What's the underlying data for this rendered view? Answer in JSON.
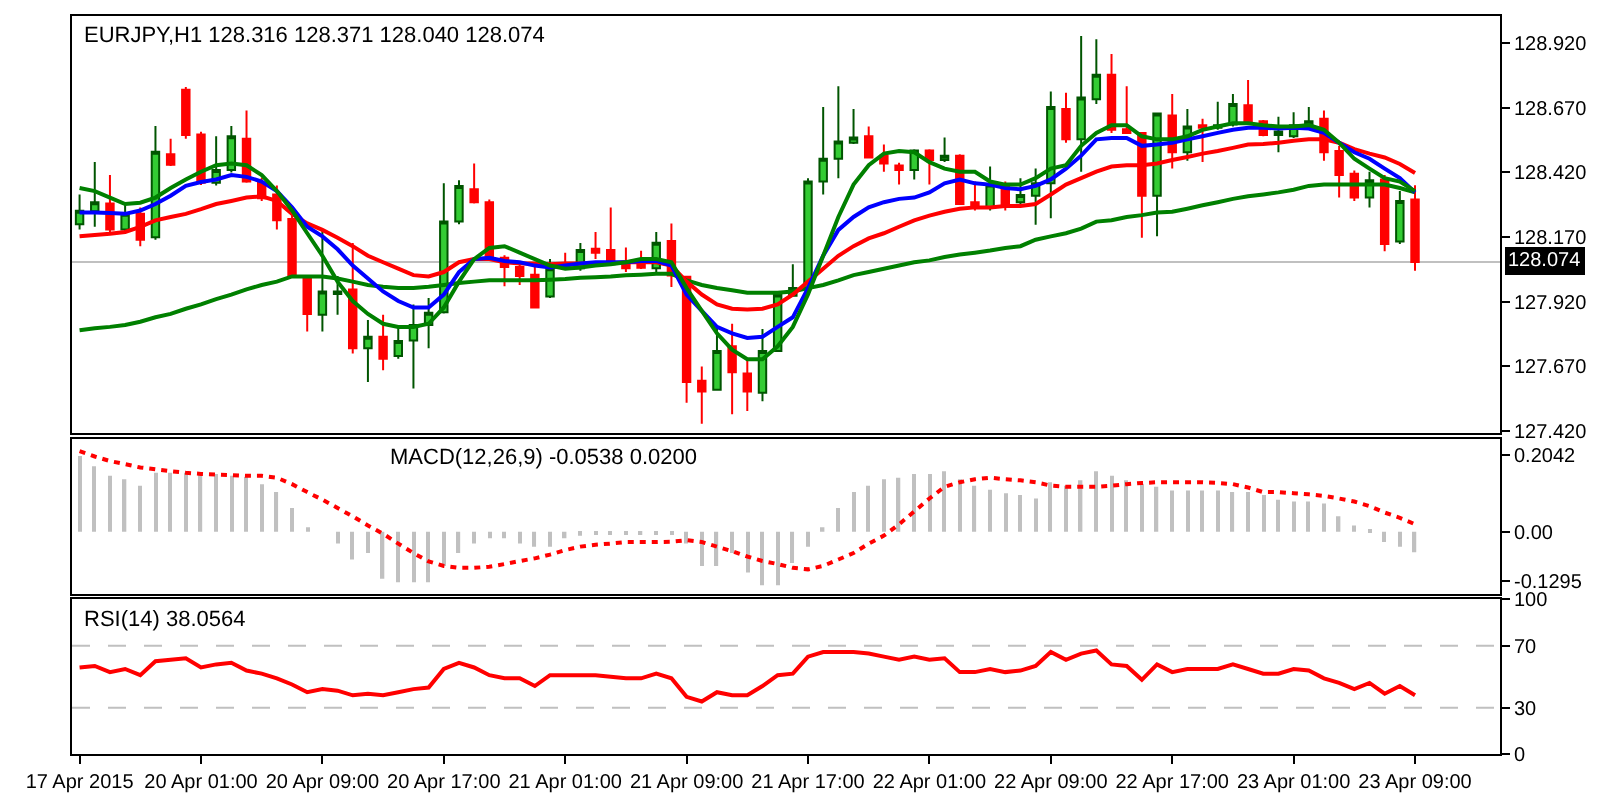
{
  "chart_data": [
    {
      "type": "candlestick",
      "title": "EURJPY,H1 128.316 128.371 128.040 128.074",
      "categories": [
        null,
        null,
        null,
        null,
        null,
        null,
        null,
        null,
        null,
        null,
        null,
        null,
        null,
        null,
        null,
        null,
        null,
        null,
        null,
        null,
        null,
        null,
        null,
        null,
        null,
        null,
        null,
        null,
        null,
        null,
        null,
        null,
        null,
        null,
        null,
        null,
        null,
        null,
        null,
        null,
        null,
        null,
        null,
        null,
        null,
        null,
        null,
        null,
        null,
        null,
        null,
        null,
        null,
        null,
        null,
        null,
        null,
        null,
        null,
        null,
        null,
        null,
        null,
        null,
        null,
        null,
        null,
        null,
        null,
        null,
        null,
        null,
        null,
        null,
        null,
        null,
        null,
        null,
        null,
        null,
        null,
        null,
        null,
        null,
        null,
        null,
        null,
        null,
        null
      ],
      "ohlc": [
        [
          128.22,
          128.335,
          128.2,
          128.272
        ],
        [
          128.27,
          128.46,
          128.21,
          128.305
        ],
        [
          128.3,
          128.41,
          128.185,
          128.2
        ],
        [
          128.2,
          128.3,
          128.19,
          128.26
        ],
        [
          128.26,
          128.285,
          128.135,
          128.16
        ],
        [
          128.17,
          128.6,
          128.16,
          128.5
        ],
        [
          128.49,
          128.55,
          128.445,
          128.45
        ],
        [
          128.74,
          128.75,
          128.55,
          128.565
        ],
        [
          128.567,
          128.577,
          128.372,
          128.38
        ],
        [
          128.38,
          128.56,
          128.37,
          128.43
        ],
        [
          128.43,
          128.6,
          128.42,
          128.56
        ],
        [
          128.55,
          128.66,
          128.38,
          128.385
        ],
        [
          128.38,
          128.4,
          128.31,
          128.32
        ],
        [
          128.335,
          128.37,
          128.2,
          128.235
        ],
        [
          128.24,
          128.285,
          128.015,
          128.017
        ],
        [
          128.01,
          128.012,
          127.805,
          127.873
        ],
        [
          127.87,
          128.2,
          127.805,
          127.96
        ],
        [
          127.95,
          128.02,
          127.87,
          127.96
        ],
        [
          127.968,
          128.147,
          127.72,
          127.74
        ],
        [
          127.74,
          127.85,
          127.61,
          127.785
        ],
        [
          127.785,
          127.87,
          127.655,
          127.7
        ],
        [
          127.71,
          127.82,
          127.7,
          127.768
        ],
        [
          127.77,
          127.91,
          127.585,
          127.83
        ],
        [
          127.83,
          127.935,
          127.74,
          127.878
        ],
        [
          127.88,
          128.378,
          127.875,
          128.23
        ],
        [
          128.23,
          128.39,
          128.22,
          128.368
        ],
        [
          128.355,
          128.455,
          128.3,
          128.305
        ],
        [
          128.305,
          128.315,
          128.085,
          128.087
        ],
        [
          128.09,
          128.1,
          127.98,
          128.055
        ],
        [
          128.055,
          128.07,
          127.985,
          128.02
        ],
        [
          128.025,
          128.06,
          127.895,
          127.898
        ],
        [
          127.94,
          128.085,
          127.935,
          128.05
        ],
        [
          128.07,
          128.11,
          128.05,
          128.06
        ],
        [
          128.05,
          128.147,
          128.04,
          128.12
        ],
        [
          128.125,
          128.19,
          128.085,
          128.11
        ],
        [
          128.12,
          128.285,
          128.06,
          128.077
        ],
        [
          128.072,
          128.13,
          128.035,
          128.05
        ],
        [
          128.072,
          128.117,
          128.047,
          128.052
        ],
        [
          128.05,
          128.19,
          128.035,
          128.148
        ],
        [
          128.155,
          128.223,
          127.977,
          128.022
        ],
        [
          128.017,
          128.02,
          127.53,
          127.61
        ],
        [
          127.615,
          127.67,
          127.448,
          127.573
        ],
        [
          127.58,
          127.83,
          127.58,
          127.73
        ],
        [
          127.748,
          127.835,
          127.485,
          127.648
        ],
        [
          127.643,
          127.698,
          127.498,
          127.573
        ],
        [
          127.568,
          127.815,
          127.535,
          127.73
        ],
        [
          127.73,
          127.96,
          127.73,
          127.948
        ],
        [
          127.943,
          128.065,
          127.94,
          127.973
        ],
        [
          127.973,
          128.398,
          127.967,
          128.385
        ],
        [
          128.385,
          128.673,
          128.335,
          128.473
        ],
        [
          128.473,
          128.753,
          128.398,
          128.54
        ],
        [
          128.535,
          128.665,
          128.53,
          128.555
        ],
        [
          128.56,
          128.598,
          128.475,
          128.478
        ],
        [
          128.485,
          128.528,
          128.423,
          128.455
        ],
        [
          128.447,
          128.458,
          128.373,
          128.43
        ],
        [
          128.43,
          128.51,
          128.393,
          128.505
        ],
        [
          128.505,
          128.51,
          128.373,
          128.468
        ],
        [
          128.468,
          128.555,
          128.46,
          128.485
        ],
        [
          128.485,
          128.49,
          128.295,
          128.298
        ],
        [
          128.305,
          128.385,
          128.273,
          128.285
        ],
        [
          128.285,
          128.443,
          128.273,
          128.373
        ],
        [
          128.368,
          128.385,
          128.273,
          128.298
        ],
        [
          128.305,
          128.398,
          128.298,
          128.333
        ],
        [
          128.33,
          128.435,
          128.218,
          128.378
        ],
        [
          128.378,
          128.733,
          128.243,
          128.673
        ],
        [
          128.665,
          128.728,
          128.535,
          128.548
        ],
        [
          128.548,
          128.948,
          128.423,
          128.71
        ],
        [
          128.703,
          128.935,
          128.685,
          128.798
        ],
        [
          128.798,
          128.878,
          128.573,
          128.585
        ],
        [
          128.587,
          128.753,
          128.57,
          128.573
        ],
        [
          128.573,
          128.575,
          128.168,
          128.33
        ],
        [
          128.33,
          128.65,
          128.173,
          128.648
        ],
        [
          128.64,
          128.723,
          128.435,
          128.498
        ],
        [
          128.498,
          128.665,
          128.465,
          128.598
        ],
        [
          128.603,
          128.628,
          128.46,
          128.593
        ],
        [
          128.593,
          128.693,
          128.585,
          128.603
        ],
        [
          128.605,
          128.723,
          128.598,
          128.685
        ],
        [
          128.68,
          128.778,
          128.61,
          128.618
        ],
        [
          128.618,
          128.623,
          128.56,
          128.565
        ],
        [
          128.565,
          128.635,
          128.498,
          128.578
        ],
        [
          128.56,
          128.653,
          128.553,
          128.603
        ],
        [
          128.605,
          128.673,
          128.598,
          128.618
        ],
        [
          128.628,
          128.66,
          128.465,
          128.498
        ],
        [
          128.503,
          128.523,
          128.323,
          128.41
        ],
        [
          128.415,
          128.428,
          128.31,
          128.323
        ],
        [
          128.323,
          128.423,
          128.285,
          128.39
        ],
        [
          128.393,
          128.41,
          128.115,
          128.143
        ],
        [
          128.153,
          128.348,
          128.143,
          128.31
        ],
        [
          128.316,
          128.371,
          128.04,
          128.074
        ]
      ],
      "series": [
        {
          "type": "line",
          "color": "#008000",
          "values": [
            127.81,
            127.818,
            127.823,
            127.83,
            127.843,
            127.86,
            127.873,
            127.893,
            127.91,
            127.93,
            127.948,
            127.968,
            127.985,
            127.998,
            128.018,
            128.018,
            128.018,
            128.01,
            127.998,
            127.985,
            127.978,
            127.973,
            127.973,
            127.978,
            127.985,
            127.993,
            127.998,
            128.003,
            128.003,
            128.003,
            128.003,
            128.005,
            128.008,
            128.013,
            128.015,
            128.018,
            128.023,
            128.025,
            128.028,
            128.028,
            128.003,
            127.985,
            127.973,
            127.965,
            127.955,
            127.955,
            127.955,
            127.96,
            127.973,
            127.985,
            128.003,
            128.023,
            128.035,
            128.048,
            128.06,
            128.073,
            128.08,
            128.093,
            128.103,
            128.11,
            128.118,
            128.128,
            128.135,
            128.16,
            128.173,
            128.185,
            128.203,
            128.23,
            128.235,
            128.248,
            128.255,
            128.265,
            128.268,
            128.28,
            128.293,
            128.305,
            128.318,
            128.328,
            128.335,
            128.343,
            128.353,
            128.368,
            128.373,
            128.373,
            128.373,
            128.373,
            128.373,
            128.36,
            128.343
          ]
        },
        {
          "type": "line",
          "color": "#ff0000",
          "values": [
            128.173,
            128.178,
            128.183,
            128.19,
            128.21,
            128.235,
            128.248,
            128.26,
            128.278,
            128.298,
            128.31,
            128.323,
            128.328,
            128.31,
            128.26,
            128.223,
            128.198,
            128.168,
            128.135,
            128.098,
            128.073,
            128.048,
            128.023,
            128.018,
            128.035,
            128.073,
            128.085,
            128.085,
            128.073,
            128.068,
            128.068,
            128.065,
            128.068,
            128.068,
            128.068,
            128.068,
            128.073,
            128.073,
            128.073,
            128.06,
            127.998,
            127.948,
            127.91,
            127.893,
            127.89,
            127.893,
            127.91,
            127.948,
            127.998,
            128.048,
            128.098,
            128.135,
            128.165,
            128.185,
            128.21,
            128.235,
            128.253,
            128.268,
            128.28,
            128.285,
            128.285,
            128.29,
            128.29,
            128.298,
            128.335,
            128.373,
            128.398,
            128.423,
            128.443,
            128.448,
            128.448,
            128.455,
            128.468,
            128.48,
            128.493,
            128.503,
            128.515,
            128.528,
            128.53,
            128.535,
            128.543,
            128.548,
            128.548,
            128.535,
            128.51,
            128.493,
            128.478,
            128.453,
            128.418
          ]
        },
        {
          "type": "line",
          "color": "#0000ff",
          "values": [
            128.265,
            128.265,
            128.263,
            128.26,
            128.273,
            128.298,
            128.33,
            128.368,
            128.383,
            128.393,
            128.41,
            128.403,
            128.385,
            128.348,
            128.285,
            128.21,
            128.173,
            128.123,
            128.06,
            128.01,
            127.96,
            127.923,
            127.898,
            127.898,
            127.948,
            128.035,
            128.085,
            128.09,
            128.078,
            128.073,
            128.06,
            128.053,
            128.06,
            128.068,
            128.073,
            128.073,
            128.073,
            128.078,
            128.078,
            128.06,
            127.948,
            127.885,
            127.823,
            127.798,
            127.78,
            127.785,
            127.823,
            127.86,
            127.973,
            128.098,
            128.198,
            128.248,
            128.285,
            128.305,
            128.318,
            128.323,
            128.343,
            128.378,
            128.393,
            128.378,
            128.373,
            128.36,
            128.355,
            128.368,
            128.393,
            128.435,
            128.485,
            128.548,
            128.553,
            128.553,
            128.523,
            128.528,
            128.535,
            128.548,
            128.56,
            128.573,
            128.585,
            128.593,
            128.593,
            128.59,
            128.593,
            128.59,
            128.573,
            128.535,
            128.498,
            128.473,
            128.435,
            128.398,
            128.343
          ]
        },
        {
          "type": "line",
          "color": "#008000",
          "values": [
            128.36,
            128.348,
            128.323,
            128.298,
            128.303,
            128.323,
            128.36,
            128.393,
            128.423,
            128.448,
            128.455,
            128.448,
            128.41,
            128.348,
            128.273,
            128.185,
            128.098,
            127.998,
            127.923,
            127.873,
            127.835,
            127.823,
            127.823,
            127.835,
            127.898,
            127.998,
            128.085,
            128.128,
            128.135,
            128.11,
            128.085,
            128.06,
            128.048,
            128.053,
            128.06,
            128.065,
            128.073,
            128.085,
            128.085,
            128.073,
            127.973,
            127.885,
            127.798,
            127.735,
            127.698,
            127.698,
            127.748,
            127.823,
            127.948,
            128.098,
            128.248,
            128.373,
            128.448,
            128.493,
            128.503,
            128.498,
            128.46,
            128.435,
            128.423,
            128.423,
            128.385,
            128.373,
            128.373,
            128.398,
            128.435,
            128.448,
            128.523,
            128.573,
            128.603,
            128.603,
            128.56,
            128.548,
            128.548,
            128.56,
            128.585,
            128.598,
            128.61,
            128.61,
            128.603,
            128.598,
            128.598,
            128.603,
            128.585,
            128.535,
            128.473,
            128.435,
            128.398,
            128.385,
            128.348
          ]
        }
      ],
      "ylim": [
        127.412,
        129.025
      ],
      "yticks": [
        {
          "value": 127.42,
          "label": "127.420"
        },
        {
          "value": 127.67,
          "label": "127.670"
        },
        {
          "value": 127.92,
          "label": "127.920"
        },
        {
          "value": 128.17,
          "label": "128.170"
        },
        {
          "value": 128.42,
          "label": "128.420"
        },
        {
          "value": 128.67,
          "label": "128.670"
        },
        {
          "value": 128.92,
          "label": "128.920"
        }
      ],
      "ref_lines": [
        {
          "axis": "y",
          "value": 128.074,
          "label": "128.074",
          "color": "#c0c0c0"
        }
      ],
      "tick_labels": "y"
    },
    {
      "type": "bar",
      "title": "MACD(12,26,9) -0.0538 0.0200",
      "categories": [
        null,
        null,
        null,
        null,
        null,
        null,
        null,
        null,
        null,
        null,
        null,
        null,
        null,
        null,
        null,
        null,
        null,
        null,
        null,
        null,
        null,
        null,
        null,
        null,
        null,
        null,
        null,
        null,
        null,
        null,
        null,
        null,
        null,
        null,
        null,
        null,
        null,
        null,
        null,
        null,
        null,
        null,
        null,
        null,
        null,
        null,
        null,
        null,
        null,
        null,
        null,
        null,
        null,
        null,
        null,
        null,
        null,
        null,
        null,
        null,
        null,
        null,
        null,
        null,
        null,
        null,
        null,
        null,
        null,
        null,
        null,
        null,
        null,
        null,
        null,
        null,
        null,
        null,
        null,
        null,
        null,
        null,
        null,
        null,
        null,
        null,
        null,
        null,
        null
      ],
      "series": [
        {
          "color": "#c0c0c0",
          "values": [
            0.2,
            0.173,
            0.148,
            0.139,
            0.122,
            0.156,
            0.156,
            0.156,
            0.153,
            0.153,
            0.148,
            0.145,
            0.126,
            0.105,
            0.063,
            0.012,
            null,
            -0.031,
            -0.073,
            -0.056,
            -0.124,
            -0.133,
            -0.133,
            -0.133,
            -0.09,
            -0.056,
            -0.031,
            -0.017,
            -0.017,
            -0.031,
            -0.039,
            -0.039,
            -0.017,
            -0.01,
            -0.005,
            -0.005,
            -0.005,
            -0.005,
            -0.005,
            -0.005,
            -0.031,
            -0.09,
            -0.09,
            -0.056,
            -0.107,
            -0.141,
            -0.141,
            -0.082,
            -0.039,
            0.012,
            0.063,
            0.105,
            0.122,
            0.139,
            0.143,
            0.153,
            0.153,
            0.16,
            0.139,
            0.122,
            0.111,
            0.102,
            0.097,
            0.088,
            0.131,
            0.122,
            0.136,
            0.16,
            0.148,
            0.136,
            0.126,
            0.119,
            0.109,
            0.109,
            0.109,
            0.109,
            0.105,
            0.105,
            0.097,
            0.085,
            0.08,
            0.08,
            0.075,
            0.041,
            0.017,
            0.003,
            -0.027,
            -0.039,
            -0.0538
          ]
        },
        {
          "type": "line",
          "color": "#ff0000",
          "line_style": "dotted",
          "values": [
            0.213,
            0.199,
            0.187,
            0.179,
            0.17,
            0.165,
            0.16,
            0.156,
            0.153,
            0.151,
            0.15,
            0.148,
            0.148,
            0.143,
            0.126,
            0.105,
            0.085,
            0.063,
            0.041,
            0.017,
            -0.005,
            -0.031,
            -0.056,
            -0.078,
            -0.09,
            -0.095,
            -0.095,
            -0.092,
            -0.085,
            -0.077,
            -0.07,
            -0.06,
            -0.048,
            -0.039,
            -0.034,
            -0.031,
            -0.027,
            -0.027,
            -0.027,
            -0.026,
            -0.022,
            -0.027,
            -0.039,
            -0.051,
            -0.065,
            -0.077,
            -0.085,
            -0.095,
            -0.099,
            -0.09,
            -0.073,
            -0.056,
            -0.031,
            -0.01,
            0.02,
            0.054,
            0.088,
            0.119,
            0.131,
            0.139,
            0.143,
            0.139,
            0.136,
            0.131,
            0.122,
            0.119,
            0.119,
            0.119,
            0.122,
            0.126,
            0.129,
            0.131,
            0.131,
            0.131,
            0.131,
            0.129,
            0.126,
            0.117,
            0.105,
            0.105,
            0.102,
            0.099,
            0.095,
            0.088,
            0.08,
            0.068,
            0.051,
            0.037,
            0.02
          ]
        }
      ],
      "ylim": [
        -0.163,
        0.245
      ],
      "yticks": [
        0.2042,
        {
          "value": 0,
          "label": "0.00"
        },
        -0.1295
      ],
      "tick_labels": "y"
    },
    {
      "type": "line",
      "title": "RSI(14) 38.0564",
      "categories": [
        "17 Apr 2015",
        null,
        null,
        null,
        null,
        null,
        null,
        null,
        "20 Apr 01:00",
        null,
        null,
        null,
        null,
        null,
        null,
        null,
        "20 Apr 09:00",
        null,
        null,
        null,
        null,
        null,
        null,
        null,
        "20 Apr 17:00",
        null,
        null,
        null,
        null,
        null,
        null,
        null,
        "21 Apr 01:00",
        null,
        null,
        null,
        null,
        null,
        null,
        null,
        "21 Apr 09:00",
        null,
        null,
        null,
        null,
        null,
        null,
        null,
        "21 Apr 17:00",
        null,
        null,
        null,
        null,
        null,
        null,
        null,
        "22 Apr 01:00",
        null,
        null,
        null,
        null,
        null,
        null,
        null,
        "22 Apr 09:00",
        null,
        null,
        null,
        null,
        null,
        null,
        null,
        "22 Apr 17:00",
        null,
        null,
        null,
        null,
        null,
        null,
        null,
        "23 Apr 01:00",
        null,
        null,
        null,
        null,
        null,
        null,
        null,
        "23 Apr 09:00"
      ],
      "color": "#ff0000",
      "values": [
        56,
        57,
        53,
        55,
        51,
        60,
        61,
        62,
        56,
        58,
        59,
        54,
        52,
        49,
        45,
        40,
        42,
        41,
        38,
        39,
        38,
        40,
        42,
        43,
        55,
        59,
        56,
        51,
        49,
        49,
        44,
        51,
        51,
        51,
        51,
        50,
        49,
        49,
        52,
        49,
        37,
        34,
        40,
        38,
        38,
        44,
        51,
        52,
        63,
        66,
        66,
        66,
        65,
        63,
        61,
        63,
        61,
        62,
        53,
        53,
        55,
        53,
        54,
        57,
        66,
        61,
        65,
        67,
        58,
        57,
        48,
        58,
        53,
        55,
        55,
        55,
        58,
        55,
        52,
        52,
        55,
        54,
        49,
        46,
        42,
        46,
        39,
        44,
        38
      ],
      "ylim": [
        0,
        100
      ],
      "yticks": [
        0,
        30,
        70,
        100
      ],
      "ref_lines": [
        {
          "axis": "y",
          "value": 70,
          "color": "#c0c0c0",
          "line_style": "dashed"
        },
        {
          "axis": "y",
          "value": 30,
          "color": "#c0c0c0",
          "line_style": "dashed"
        }
      ]
    }
  ]
}
